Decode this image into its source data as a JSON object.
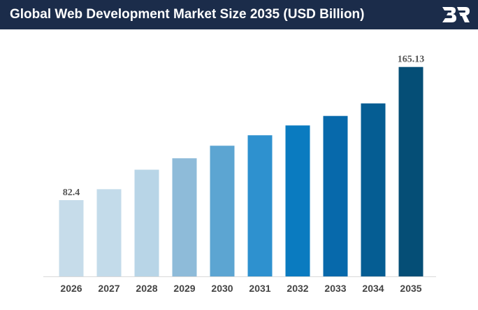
{
  "header": {
    "title": "Global Web Development Market Size 2035 (USD Billion)",
    "logo_icon": "br-logo-icon"
  },
  "chart_data": {
    "type": "bar",
    "title": "Global Web Development Market Size 2035 (USD Billion)",
    "categories": [
      "2026",
      "2027",
      "2028",
      "2029",
      "2030",
      "2031",
      "2032",
      "2033",
      "2034",
      "2035"
    ],
    "values": [
      82.4,
      89.2,
      101.3,
      108.4,
      116.2,
      122.7,
      128.8,
      134.7,
      142.5,
      165.13
    ],
    "data_labels": [
      "82.4",
      "",
      "",
      "",
      "",
      "",
      "",
      "",
      "",
      "165.13"
    ],
    "colors": [
      "#c6dcea",
      "#c3dbea",
      "#b8d5e7",
      "#8ebbd9",
      "#5ca5d2",
      "#2e91cf",
      "#0a7bc0",
      "#0769ab",
      "#055d93",
      "#054e76"
    ],
    "xlabel": "",
    "ylabel": "",
    "grid": false,
    "legend": "none"
  }
}
